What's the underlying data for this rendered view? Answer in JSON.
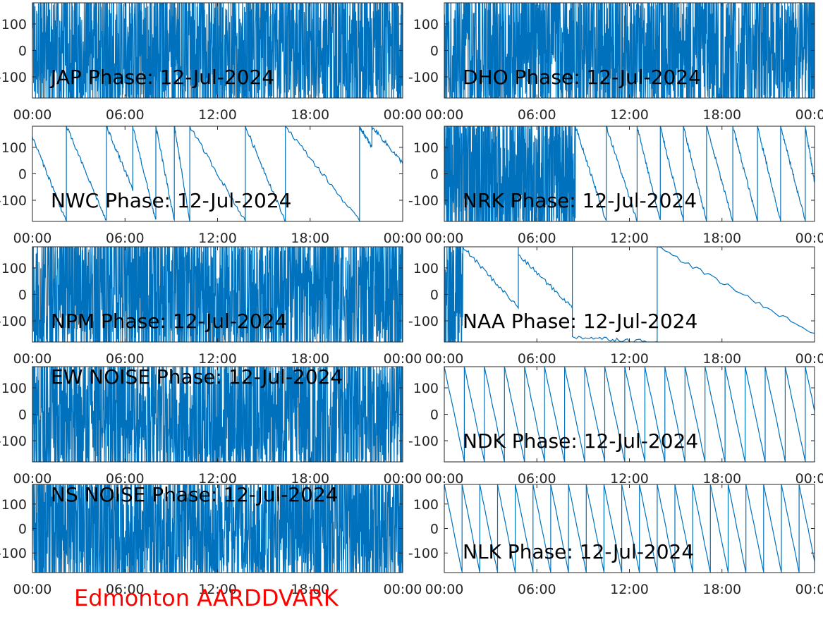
{
  "figure": {
    "footer": "Edmonton AARDDVARK",
    "footer_color": "#ff0000",
    "line_color": "#0072bd"
  },
  "chart_data": [
    {
      "type": "line",
      "title": "JAP Phase: 12-Jul-2024",
      "pattern": "noise",
      "xlim": [
        "00:00",
        "24:00"
      ],
      "ylim": [
        -180,
        180
      ],
      "xticks": [
        "00:00",
        "06:00",
        "12:00",
        "18:00",
        "00:00"
      ],
      "yticks": [
        100,
        0,
        -100
      ],
      "ytick_labels": [
        "100",
        "0",
        "-100"
      ]
    },
    {
      "type": "line",
      "title": "DHO Phase: 12-Jul-2024",
      "pattern": "noise",
      "xlim": [
        "00:00",
        "24:00"
      ],
      "ylim": [
        -180,
        180
      ],
      "xticks": [
        "00:00",
        "06:00",
        "12:00",
        "18:00",
        "00:00"
      ],
      "yticks": [
        100,
        0,
        -100
      ],
      "ytick_labels": [
        "100",
        "0",
        "-100"
      ]
    },
    {
      "type": "line",
      "title": "NWC Phase: 12-Jul-2024",
      "pattern": "wrap",
      "xlim": [
        "00:00",
        "24:00"
      ],
      "ylim": [
        -180,
        180
      ],
      "xticks": [
        "00:00",
        "06:00",
        "12:00",
        "18:00",
        "00:00"
      ],
      "yticks": [
        100,
        0,
        -100
      ],
      "ytick_labels": [
        "100",
        "0",
        "-100"
      ],
      "segments": [
        [
          0,
          2.2,
          140,
          -180
        ],
        [
          2.2,
          4.8,
          180,
          -180
        ],
        [
          4.8,
          6.5,
          180,
          -60
        ],
        [
          6.5,
          8.0,
          180,
          -180
        ],
        [
          8.0,
          9.2,
          180,
          -180
        ],
        [
          9.2,
          10.2,
          180,
          -180
        ],
        [
          10.2,
          13.8,
          180,
          -180
        ],
        [
          13.8,
          16.4,
          180,
          -180
        ],
        [
          16.4,
          21.2,
          180,
          -180
        ],
        [
          21.2,
          22.0,
          180,
          100
        ],
        [
          22.0,
          24.0,
          180,
          40
        ]
      ]
    },
    {
      "type": "line",
      "title": "NRK Phase: 12-Jul-2024",
      "pattern": "wrap",
      "xlim": [
        "00:00",
        "24:00"
      ],
      "ylim": [
        -180,
        180
      ],
      "xticks": [
        "00:00",
        "06:00",
        "12:00",
        "18:00",
        "00:00"
      ],
      "yticks": [
        100,
        0,
        -100
      ],
      "ytick_labels": [
        "100",
        "0",
        "-100"
      ],
      "noise_until": 8.5,
      "segments": [
        [
          8.5,
          10.5,
          180,
          -180
        ],
        [
          10.5,
          12.5,
          180,
          -180
        ],
        [
          12.5,
          14.0,
          180,
          -180
        ],
        [
          14.0,
          15.5,
          180,
          -180
        ],
        [
          15.5,
          17.0,
          180,
          -180
        ],
        [
          17.0,
          18.7,
          180,
          -180
        ],
        [
          18.7,
          20.3,
          180,
          -180
        ],
        [
          20.3,
          21.8,
          180,
          -180
        ],
        [
          21.8,
          23.4,
          180,
          -180
        ],
        [
          23.4,
          24.0,
          180,
          -30
        ]
      ]
    },
    {
      "type": "line",
      "title": "NPM Phase: 12-Jul-2024",
      "pattern": "noise",
      "xlim": [
        "00:00",
        "24:00"
      ],
      "ylim": [
        -180,
        180
      ],
      "xticks": [
        "00:00",
        "06:00",
        "12:00",
        "18:00",
        "00:00"
      ],
      "yticks": [
        100,
        0,
        -100
      ],
      "ytick_labels": [
        "100",
        "0",
        "-100"
      ]
    },
    {
      "type": "line",
      "title": "NAA Phase: 12-Jul-2024",
      "pattern": "wrap",
      "xlim": [
        "00:00",
        "24:00"
      ],
      "ylim": [
        -180,
        180
      ],
      "xticks": [
        "00:00",
        "06:00",
        "12:00",
        "18:00",
        "00:00"
      ],
      "yticks": [
        100,
        0,
        -100
      ],
      "ytick_labels": [
        "100",
        "0",
        "-100"
      ],
      "noise_until": 1.2,
      "segments": [
        [
          1.2,
          4.8,
          180,
          -50
        ],
        [
          4.8,
          8.3,
          150,
          -50
        ],
        [
          8.3,
          13.8,
          -160,
          -180
        ],
        [
          13.8,
          24.0,
          180,
          -150
        ]
      ]
    },
    {
      "type": "line",
      "title": "EW NOISE Phase: 12-Jul-2024",
      "pattern": "noise",
      "xlim": [
        "00:00",
        "24:00"
      ],
      "ylim": [
        -180,
        180
      ],
      "xticks": [
        "00:00",
        "06:00",
        "12:00",
        "18:00",
        "00:00"
      ],
      "yticks": [
        100,
        0,
        -100
      ],
      "ytick_labels": [
        "100",
        "0",
        "-100"
      ]
    },
    {
      "type": "line",
      "title": "NDK Phase: 12-Jul-2024",
      "pattern": "sawtooth",
      "period_hours": 1.3,
      "xlim": [
        "00:00",
        "24:00"
      ],
      "ylim": [
        -180,
        180
      ],
      "xticks": [
        "00:00",
        "06:00",
        "12:00",
        "18:00",
        "00:00"
      ],
      "yticks": [
        100,
        0,
        -100
      ],
      "ytick_labels": [
        "100",
        "0",
        "-100"
      ]
    },
    {
      "type": "line",
      "title": "NS NOISE Phase: 12-Jul-2024",
      "pattern": "noise",
      "xlim": [
        "00:00",
        "24:00"
      ],
      "ylim": [
        -180,
        180
      ],
      "xticks": [
        "00:00",
        "06:00",
        "12:00",
        "18:00",
        "00:00"
      ],
      "yticks": [
        100,
        0,
        -100
      ],
      "ytick_labels": [
        "100",
        "0",
        "-100"
      ]
    },
    {
      "type": "line",
      "title": "NLK Phase: 12-Jul-2024",
      "pattern": "sawtooth",
      "period_hours": 1.15,
      "xlim": [
        "00:00",
        "24:00"
      ],
      "ylim": [
        -180,
        180
      ],
      "xticks": [
        "00:00",
        "06:00",
        "12:00",
        "18:00",
        "00:00"
      ],
      "yticks": [
        100,
        0,
        -100
      ],
      "ytick_labels": [
        "100",
        "0",
        "-100"
      ]
    }
  ]
}
